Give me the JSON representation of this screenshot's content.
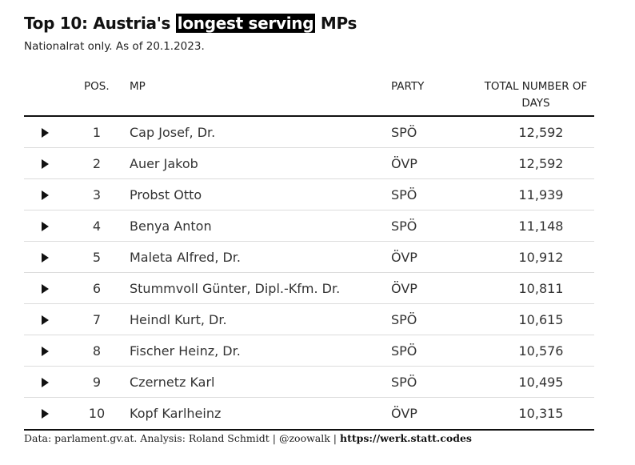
{
  "title": {
    "prefix": "Top 10: Austria's ",
    "highlight": "longest serving",
    "suffix": " MPs"
  },
  "subtitle": "Nationalrat only. As of 20.1.2023.",
  "columns": {
    "pos": "POS.",
    "mp": "MP",
    "party": "PARTY",
    "total": "TOTAL NUMBER OF DAYS"
  },
  "chart_data": {
    "type": "table",
    "title": "Top 10: Austria's longest serving MPs",
    "subtitle": "Nationalrat only. As of 20.1.2023.",
    "columns": [
      "POS.",
      "MP",
      "PARTY",
      "TOTAL NUMBER OF DAYS"
    ],
    "rows": [
      {
        "pos": "1",
        "mp": "Cap Josef, Dr.",
        "party": "SPÖ",
        "total": "12,592"
      },
      {
        "pos": "2",
        "mp": "Auer Jakob",
        "party": "ÖVP",
        "total": "12,592"
      },
      {
        "pos": "3",
        "mp": "Probst Otto",
        "party": "SPÖ",
        "total": "11,939"
      },
      {
        "pos": "4",
        "mp": "Benya Anton",
        "party": "SPÖ",
        "total": "11,148"
      },
      {
        "pos": "5",
        "mp": "Maleta Alfred, Dr.",
        "party": "ÖVP",
        "total": "10,912"
      },
      {
        "pos": "6",
        "mp": "Stummvoll Günter, Dipl.-Kfm. Dr.",
        "party": "ÖVP",
        "total": "10,811"
      },
      {
        "pos": "7",
        "mp": "Heindl Kurt, Dr.",
        "party": "SPÖ",
        "total": "10,615"
      },
      {
        "pos": "8",
        "mp": "Fischer Heinz, Dr.",
        "party": "SPÖ",
        "total": "10,576"
      },
      {
        "pos": "9",
        "mp": "Czernetz Karl",
        "party": "SPÖ",
        "total": "10,495"
      },
      {
        "pos": "10",
        "mp": "Kopf Karlheinz",
        "party": "ÖVP",
        "total": "10,315"
      }
    ]
  },
  "footer": {
    "text": "Data: parlament.gv.at. Analysis: Roland Schmidt | @zoowalk | ",
    "link": "https://werk.statt.codes"
  },
  "icons": {
    "row_expand": "triangle-right-icon"
  },
  "colors": {
    "text": "#1a1a1a",
    "highlight_bg": "#000000",
    "highlight_text": "#ffffff",
    "row_divider": "#dcdcdc"
  }
}
